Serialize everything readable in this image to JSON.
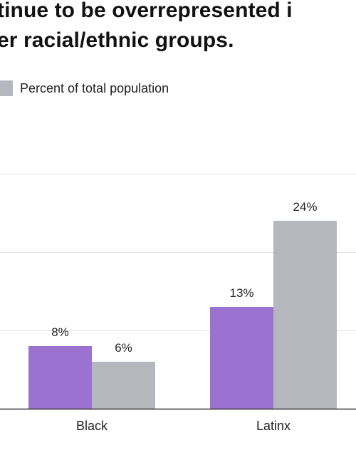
{
  "chart_data": {
    "type": "bar",
    "title_lines": [
      "tinue to be overrepresented i",
      "er racial/ethnic groups."
    ],
    "categories": [
      "Black",
      "Latinx"
    ],
    "series": [
      {
        "name": "",
        "color": "#9b72cf",
        "values": [
          8,
          13
        ],
        "labels": [
          "8%",
          "13%"
        ]
      },
      {
        "name": "Percent of total population",
        "color": "#b4b7bc",
        "values": [
          6,
          24
        ],
        "labels": [
          "6%",
          "24%"
        ]
      }
    ],
    "ylim": [
      0,
      30
    ],
    "grid": true,
    "legend_position": "top-left"
  }
}
